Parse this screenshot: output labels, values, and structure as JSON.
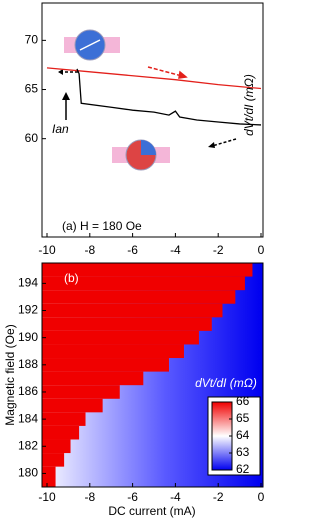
{
  "chart_data": [
    {
      "type": "line",
      "ylabel": "dVt/dI (mΩ)",
      "annotation": "(a)  H = 180 Oe",
      "arrow_label": "Ian",
      "xlim": [
        -10,
        0
      ],
      "xticks": [
        -10,
        -8,
        -6,
        -4,
        -2,
        0
      ],
      "ylim": [
        50,
        73.8
      ],
      "yticks": [
        60,
        65,
        70
      ],
      "series": [
        {
          "color": "#e3201b",
          "x": [
            -10,
            -8,
            -6,
            -4,
            -2,
            0
          ],
          "values": [
            67.2,
            66.8,
            66.4,
            66.0,
            65.5,
            65.1
          ]
        },
        {
          "color": "#000000",
          "x": [
            -8.6,
            -8.5,
            -8.4,
            -7,
            -6,
            -5,
            -4.3,
            -4,
            -3.8,
            -3,
            -2,
            -1,
            0
          ],
          "values": [
            67.1,
            66.6,
            63.6,
            63.2,
            62.9,
            62.7,
            62.4,
            62.8,
            62.2,
            61.9,
            61.7,
            61.5,
            61.4
          ]
        }
      ]
    },
    {
      "type": "heatmap",
      "panel_label": "(b)",
      "xlabel": "DC current (mA)",
      "ylabel": "Magnetic field (Oe)",
      "xlim": [
        -10,
        0
      ],
      "xticks": [
        -10,
        -8,
        -6,
        -4,
        -2,
        0
      ],
      "ylim": [
        179,
        195.5
      ],
      "yticks": [
        180,
        182,
        184,
        186,
        188,
        190,
        192,
        194
      ],
      "fields": [
        180,
        181,
        182,
        183,
        184,
        185,
        186,
        187,
        188,
        189,
        190,
        191,
        192,
        193,
        194,
        195
      ],
      "switch_current": [
        -9.6,
        -9.2,
        -8.9,
        -8.5,
        -8.2,
        -7.4,
        -6.6,
        -5.5,
        -4.3,
        -3.6,
        -2.9,
        -2.3,
        -1.8,
        -1.2,
        -0.75,
        -0.4
      ],
      "colorbar": {
        "label": "dVt/dI (mΩ)",
        "lim": [
          62,
          66
        ],
        "ticks": [
          62,
          63,
          64,
          65,
          66
        ]
      }
    }
  ]
}
